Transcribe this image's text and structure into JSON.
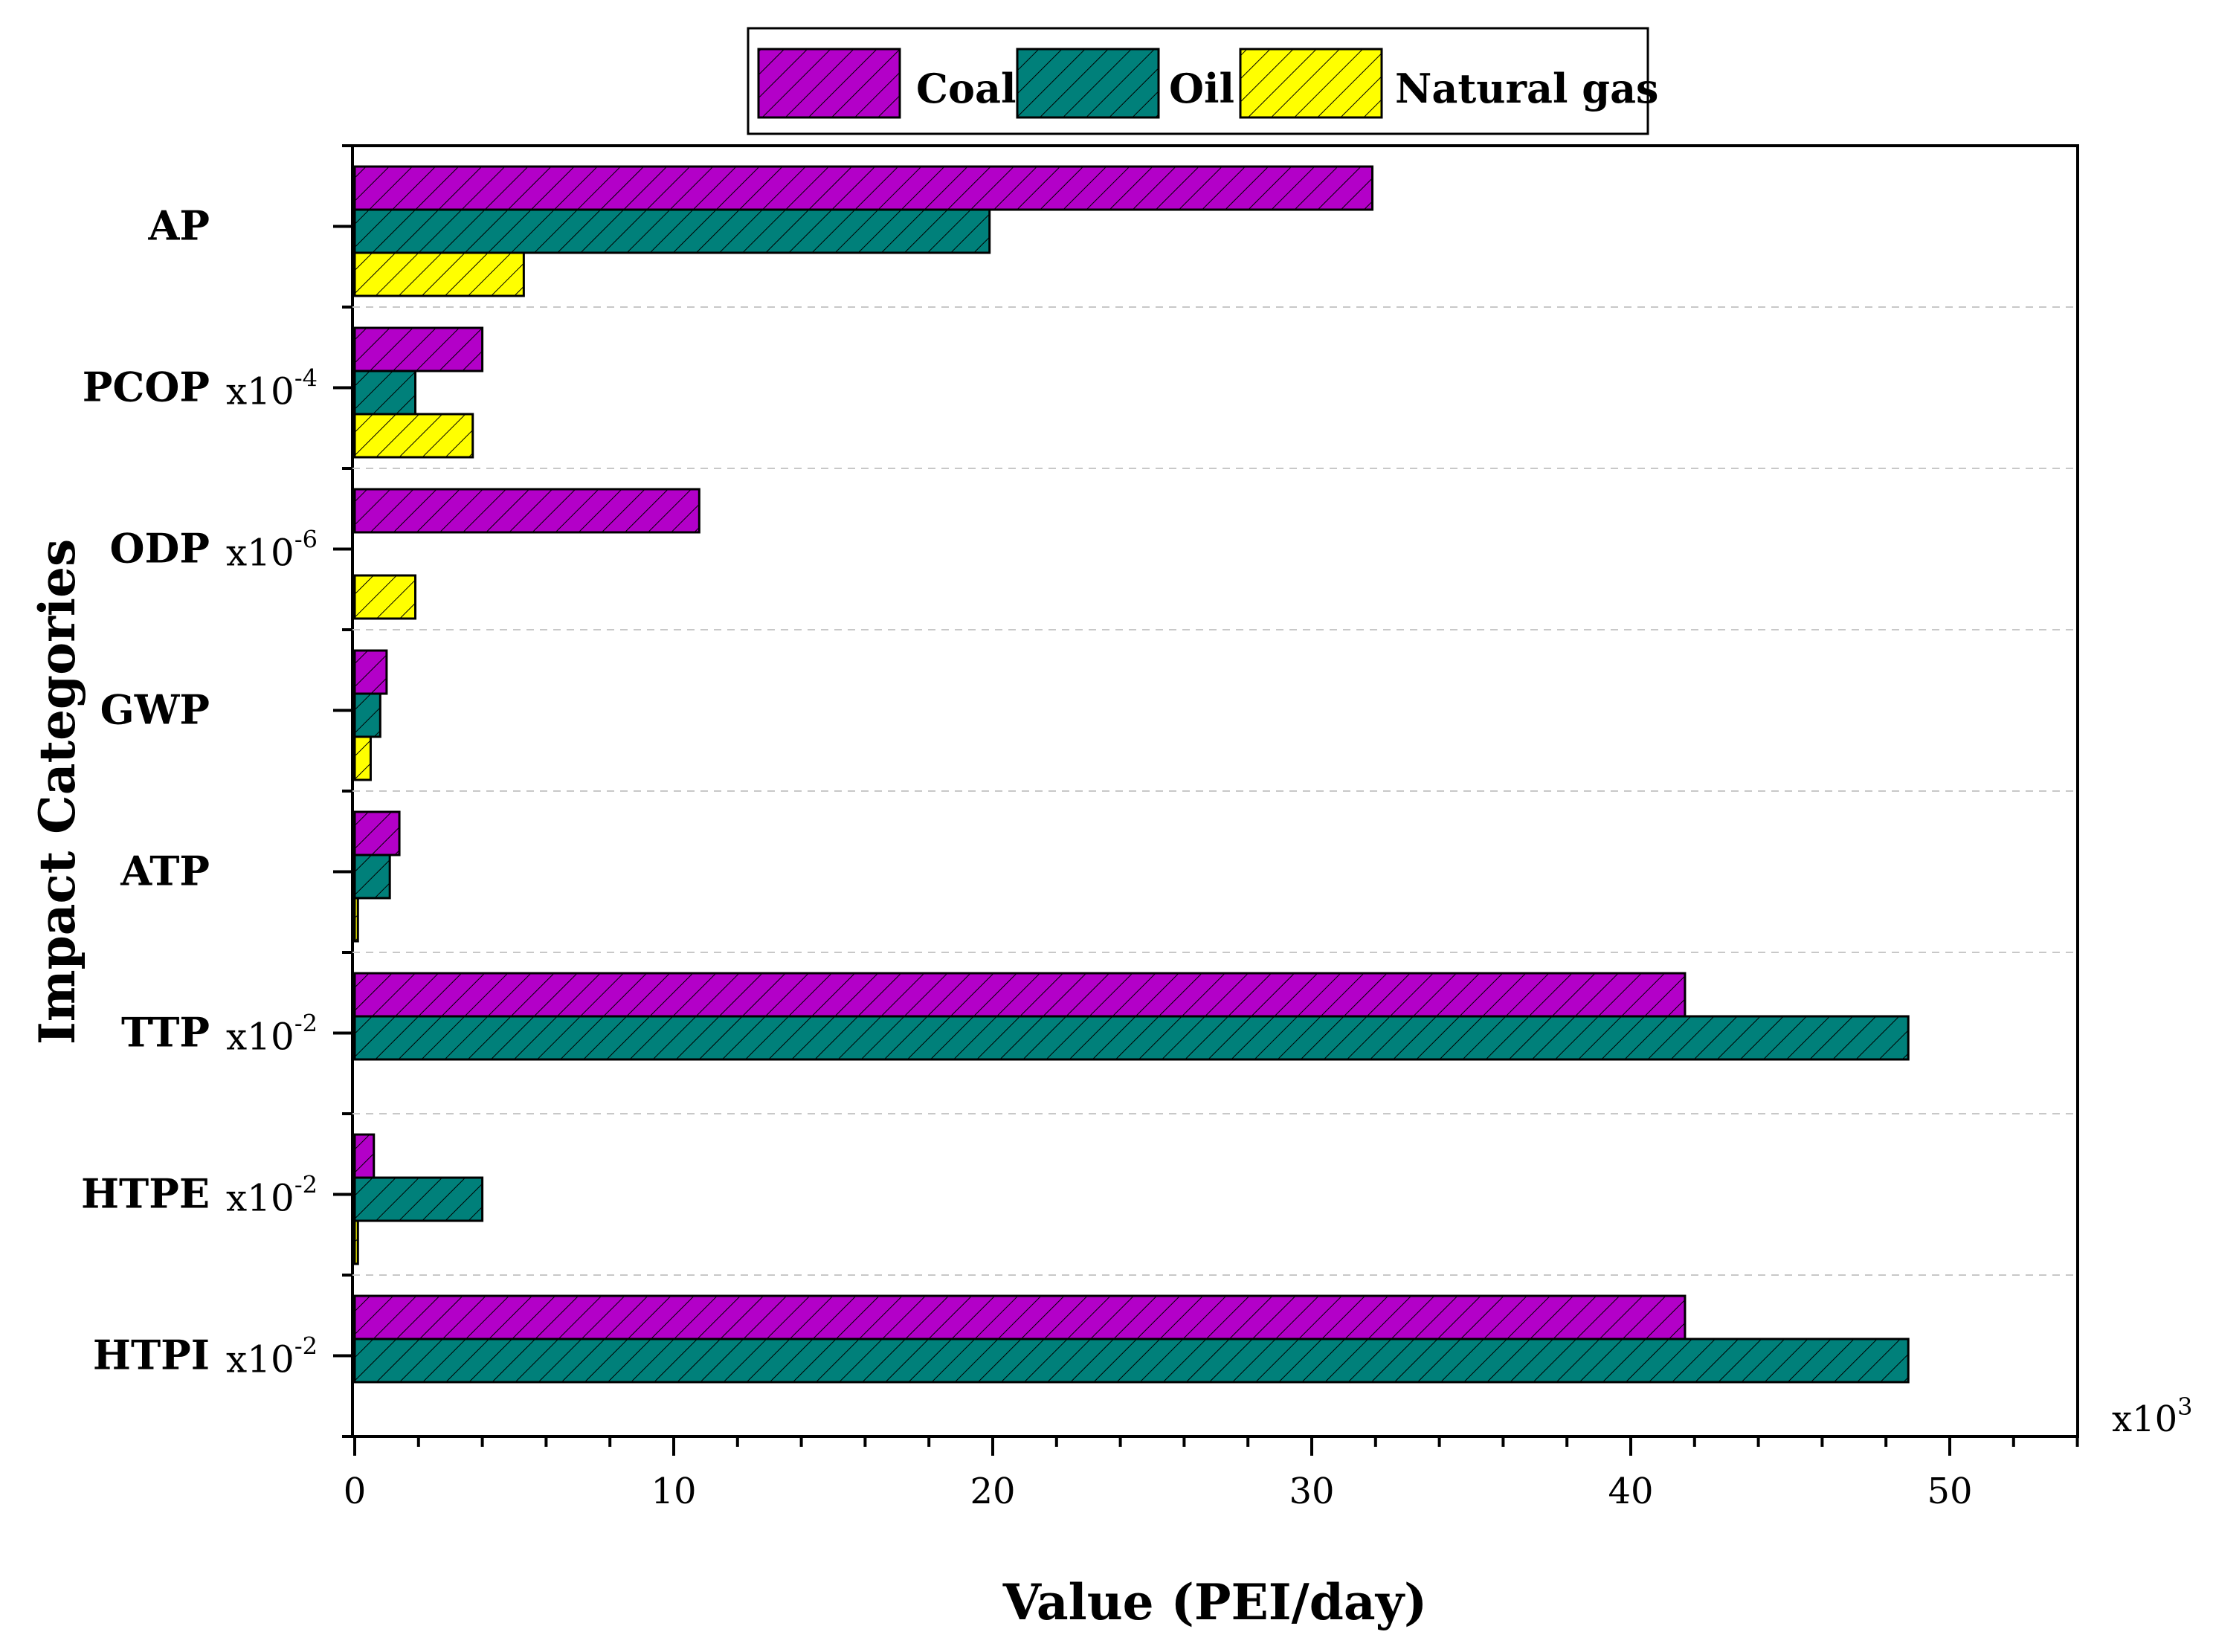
{
  "colors": {
    "coal": "#b300c8",
    "oil": "#00807a",
    "natural_gas": "#ffff00",
    "axis": "#000000",
    "grid": "#c8c8c8"
  },
  "chart_data": {
    "type": "bar",
    "orientation": "horizontal",
    "title": "",
    "xlabel": "Value (PEI/day)",
    "ylabel": "Impact Categories",
    "x_multiplier": "x10",
    "x_multiplier_exp": "3",
    "xlim": [
      0,
      54
    ],
    "x_ticks": [
      "0",
      "10",
      "20",
      "30",
      "40",
      "50"
    ],
    "x_tick_values": [
      0,
      10,
      20,
      30,
      40,
      50
    ],
    "grid": "horizontal dashed separators",
    "legend_position": "top-center",
    "categories": [
      "AP",
      "PCOP",
      "ODP",
      "GWP",
      "ATP",
      "TTP",
      "HTPE",
      "HTPI"
    ],
    "category_scales": [
      {
        "base": "",
        "exp": ""
      },
      {
        "base": "x10",
        "exp": "-4"
      },
      {
        "base": "x10",
        "exp": "-6"
      },
      {
        "base": "",
        "exp": ""
      },
      {
        "base": "",
        "exp": ""
      },
      {
        "base": "x10",
        "exp": "-2"
      },
      {
        "base": "x10",
        "exp": "-2"
      },
      {
        "base": "x10",
        "exp": "-2"
      }
    ],
    "series": [
      {
        "name": "Coal",
        "key": "coal",
        "values": [
          31.9,
          4.0,
          10.8,
          1.0,
          1.4,
          41.7,
          0.6,
          41.7
        ]
      },
      {
        "name": "Oil",
        "key": "oil",
        "values": [
          19.9,
          1.9,
          0,
          0.8,
          1.1,
          48.7,
          4.0,
          48.7
        ]
      },
      {
        "name": "Natural gas",
        "key": "natural_gas",
        "values": [
          5.3,
          3.7,
          1.9,
          0.5,
          0.1,
          0,
          0.1,
          0
        ]
      }
    ]
  }
}
